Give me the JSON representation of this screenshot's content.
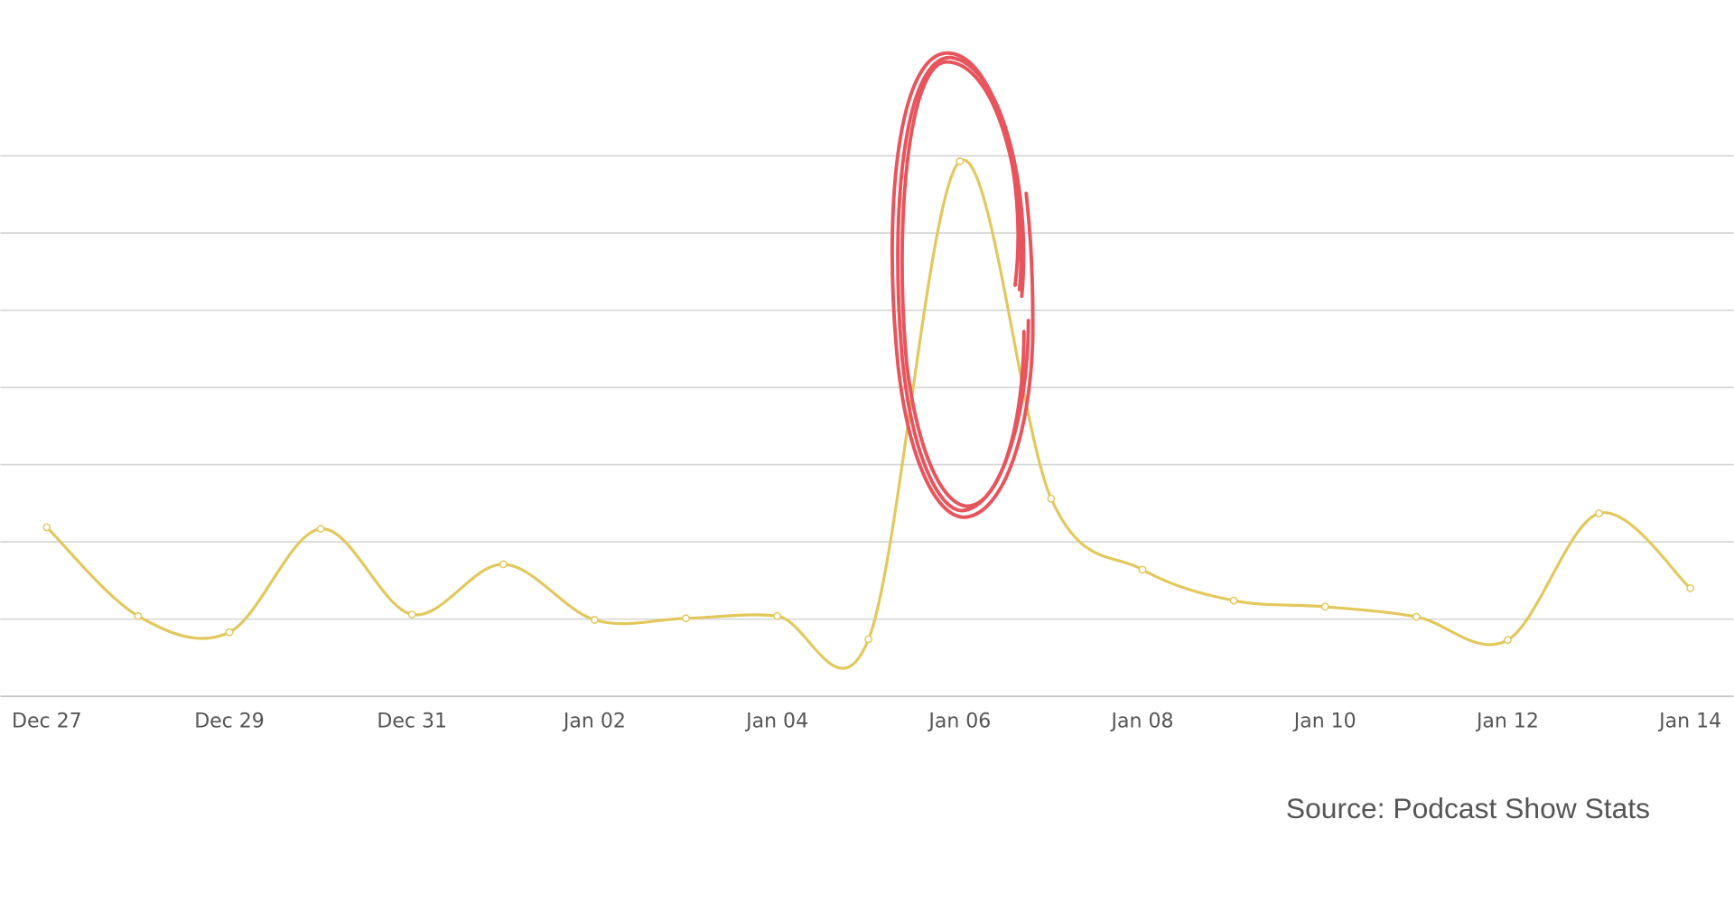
{
  "chart_data": {
    "type": "line",
    "categories": [
      "Dec 27",
      null,
      "Dec 29",
      null,
      "Dec 31",
      null,
      "Jan 02",
      null,
      "Jan 04",
      null,
      "Jan 06",
      null,
      "Jan 08",
      null,
      "Jan 10",
      null,
      "Jan 12",
      null,
      "Jan 14"
    ],
    "values": [
      2.19,
      1.04,
      0.83,
      2.17,
      1.06,
      1.71,
      0.99,
      1.01,
      1.04,
      0.74,
      6.93,
      2.56,
      1.64,
      1.24,
      1.16,
      1.03,
      0.73,
      2.37,
      1.4
    ],
    "color": "#e2c85c",
    "ylim": [
      0,
      7
    ],
    "yticks": [
      0,
      1,
      2,
      3,
      4,
      5,
      6,
      7
    ],
    "grid": true,
    "source": "Source: Podcast Show Stats"
  }
}
